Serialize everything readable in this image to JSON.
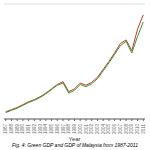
{
  "chart_data": {
    "type": "line",
    "title": "Fig. 4: Green GDP and GDP of Malaysia from 1987-2011",
    "xlabel": "Year",
    "x": [
      1987,
      1988,
      1989,
      1990,
      1991,
      1992,
      1993,
      1994,
      1995,
      1996,
      1997,
      1998,
      1999,
      2000,
      2001,
      2002,
      2003,
      2004,
      2005,
      2006,
      2007,
      2008,
      2009,
      2010,
      2011
    ],
    "series": [
      {
        "color": "#e03030",
        "values": [
          1.0,
          1.3,
          1.6,
          2.0,
          2.4,
          2.7,
          3.1,
          3.6,
          4.2,
          4.8,
          5.2,
          3.8,
          4.2,
          5.0,
          4.7,
          5.1,
          5.8,
          6.9,
          8.0,
          9.2,
          10.5,
          11.0,
          9.5,
          12.5,
          14.5
        ]
      },
      {
        "color": "#2ca02c",
        "values": [
          0.9,
          1.2,
          1.5,
          1.9,
          2.3,
          2.6,
          3.0,
          3.5,
          4.1,
          4.7,
          5.0,
          3.6,
          4.0,
          4.8,
          4.5,
          4.9,
          5.6,
          6.7,
          7.8,
          9.0,
          10.2,
          10.8,
          9.2,
          11.5,
          13.5
        ]
      }
    ],
    "xlim": [
      1986.7,
      2011.3
    ],
    "xticks": [
      1987,
      1988,
      1989,
      1990,
      1991,
      1992,
      1993,
      1994,
      1995,
      1996,
      1997,
      1998,
      1999,
      2000,
      2001,
      2002,
      2003,
      2004,
      2005,
      2006,
      2007,
      2008,
      2009,
      2010,
      2011
    ],
    "ylim": [
      0,
      16
    ],
    "yticks": [
      0,
      2,
      4,
      6,
      8,
      10,
      12,
      14,
      16
    ],
    "grid": "y",
    "tick_labels": "x"
  }
}
